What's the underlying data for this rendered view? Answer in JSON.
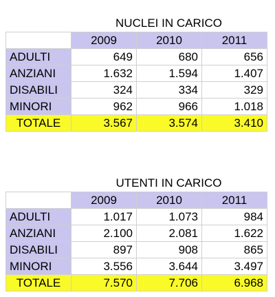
{
  "colors": {
    "header": "#c9c5ee",
    "total": "#fafa28"
  },
  "tables": [
    {
      "title": "NUCLEI IN CARICO",
      "years": [
        "2009",
        "2010",
        "2011"
      ],
      "rows": [
        {
          "label": "ADULTI",
          "values": [
            "649",
            "680",
            "656"
          ]
        },
        {
          "label": "ANZIANI",
          "values": [
            "1.632",
            "1.594",
            "1.407"
          ]
        },
        {
          "label": "DISABILI",
          "values": [
            "324",
            "334",
            "329"
          ]
        },
        {
          "label": "MINORI",
          "values": [
            "962",
            "966",
            "1.018"
          ]
        }
      ],
      "total": {
        "label": "TOTALE",
        "values": [
          "3.567",
          "3.574",
          "3.410"
        ]
      }
    },
    {
      "title": "UTENTI IN CARICO",
      "years": [
        "2009",
        "2010",
        "2011"
      ],
      "rows": [
        {
          "label": "ADULTI",
          "values": [
            "1.017",
            "1.073",
            "984"
          ]
        },
        {
          "label": "ANZIANI",
          "values": [
            "2.100",
            "2.081",
            "1.622"
          ]
        },
        {
          "label": "DISABILI",
          "values": [
            "897",
            "908",
            "865"
          ]
        },
        {
          "label": "MINORI",
          "values": [
            "3.556",
            "3.644",
            "3.497"
          ]
        }
      ],
      "total": {
        "label": "TOTALE",
        "values": [
          "7.570",
          "7.706",
          "6.968"
        ]
      }
    }
  ]
}
